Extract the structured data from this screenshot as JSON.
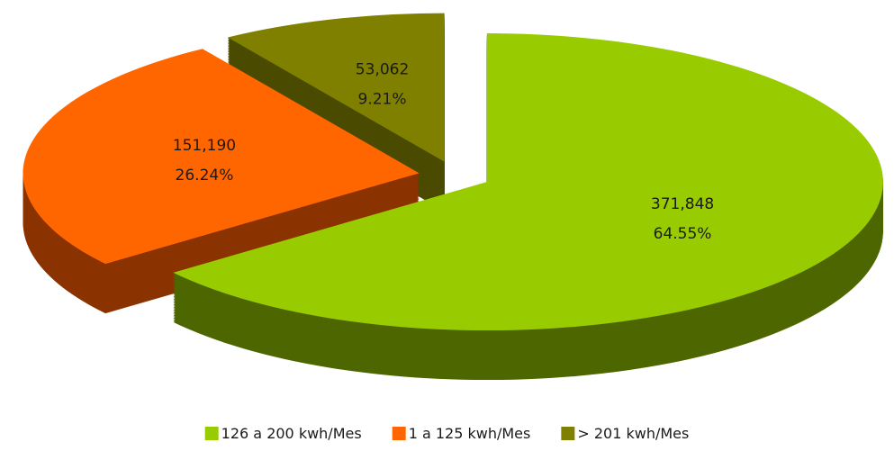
{
  "chart_data": {
    "type": "pie",
    "categories": [
      "126 a 200 kwh/Mes",
      "1 a 125 kwh/Mes",
      "> 201 kwh/Mes"
    ],
    "values": [
      371848,
      151190,
      53062
    ],
    "value_labels": [
      "371,848",
      "151,190",
      "53,062"
    ],
    "percentages": [
      64.55,
      26.24,
      9.21
    ],
    "percentage_labels": [
      "64.55%",
      "26.24%",
      "9.21%"
    ],
    "colors": [
      "#99cc00",
      "#ff6600",
      "#808000"
    ],
    "side_colors": [
      "#4d6600",
      "#8a3300",
      "#4a4a00"
    ],
    "legend": "bottom"
  }
}
